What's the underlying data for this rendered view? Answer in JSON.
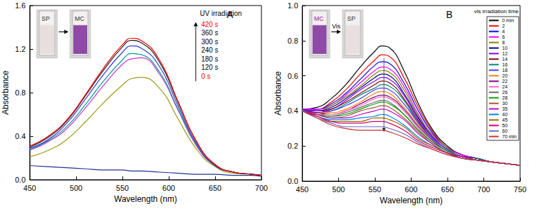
{
  "chart_data": [
    {
      "type": "line",
      "panel_label": "A",
      "x_label": "Wavelength (nm)",
      "y_label": "Absorbance",
      "xlim": [
        450,
        700
      ],
      "xticks": [
        450,
        500,
        550,
        600,
        650,
        700
      ],
      "ylim": [
        0,
        1.6
      ],
      "yticks": [
        {
          "value": 0,
          "label": "0.0"
        },
        0.4,
        0.8,
        1.2,
        1.6
      ],
      "grid": false,
      "insets": [
        "SP",
        "MC"
      ],
      "annotation_title": "UV irradiation",
      "x": [
        450,
        470,
        490,
        510,
        530,
        550,
        560,
        570,
        590,
        610,
        630,
        650,
        670,
        690,
        700
      ],
      "series": [
        {
          "name": "0 s",
          "color": "#1f2f8f",
          "values": [
            0.13,
            0.12,
            0.11,
            0.1,
            0.09,
            0.09,
            0.08,
            0.08,
            0.07,
            0.06,
            0.05,
            0.05,
            0.04,
            0.04,
            0.03
          ]
        },
        {
          "name": "120 s",
          "color": "#9a9a10",
          "values": [
            0.21,
            0.27,
            0.37,
            0.53,
            0.71,
            0.87,
            0.93,
            0.94,
            0.84,
            0.56,
            0.28,
            0.12,
            0.06,
            0.05,
            0.04
          ]
        },
        {
          "name": "180 s",
          "color": "#cc33cc",
          "values": [
            0.27,
            0.35,
            0.47,
            0.66,
            0.87,
            1.06,
            1.11,
            1.12,
            0.97,
            0.64,
            0.31,
            0.13,
            0.07,
            0.05,
            0.04
          ]
        },
        {
          "name": "240 s",
          "color": "#009999",
          "values": [
            0.28,
            0.36,
            0.49,
            0.69,
            0.91,
            1.1,
            1.16,
            1.15,
            0.99,
            0.65,
            0.32,
            0.13,
            0.07,
            0.05,
            0.04
          ]
        },
        {
          "name": "300 s",
          "color": "#3333cc",
          "values": [
            0.29,
            0.37,
            0.52,
            0.74,
            0.97,
            1.17,
            1.23,
            1.21,
            1.04,
            0.68,
            0.33,
            0.13,
            0.07,
            0.05,
            0.04
          ]
        },
        {
          "name": "360 s",
          "color": "#1a1a1a",
          "values": [
            0.3,
            0.39,
            0.54,
            0.77,
            1.01,
            1.22,
            1.28,
            1.26,
            1.08,
            0.71,
            0.35,
            0.14,
            0.07,
            0.05,
            0.04
          ]
        },
        {
          "name": "420 s",
          "color": "#ff0000",
          "values": [
            0.31,
            0.4,
            0.55,
            0.78,
            1.03,
            1.24,
            1.3,
            1.28,
            1.1,
            0.72,
            0.35,
            0.14,
            0.07,
            0.05,
            0.04
          ]
        }
      ]
    },
    {
      "type": "line",
      "panel_label": "B",
      "x_label": "Wavelength (nm)",
      "y_label": "Absorbance",
      "xlim": [
        450,
        750
      ],
      "xticks": [
        450,
        500,
        550,
        600,
        650,
        700,
        750
      ],
      "ylim": [
        0,
        1.0
      ],
      "yticks": [
        {
          "value": 0,
          "label": "0.0"
        },
        0.2,
        0.4,
        0.6,
        0.8,
        {
          "value": 1.0,
          "label": "1.0"
        }
      ],
      "grid": false,
      "legend": "upper right",
      "legend_title": "vis irradiation time",
      "insets": [
        "MC",
        "SP"
      ],
      "inset_arrow_label": "Vis",
      "x": [
        450,
        470,
        490,
        510,
        530,
        550,
        560,
        570,
        590,
        610,
        630,
        650,
        670,
        690,
        710,
        730,
        750
      ],
      "series": [
        {
          "name": "0 min",
          "color": "#000000",
          "values": [
            0.41,
            0.42,
            0.47,
            0.55,
            0.65,
            0.74,
            0.77,
            0.76,
            0.63,
            0.44,
            0.29,
            0.2,
            0.15,
            0.13,
            0.11,
            0.1,
            0.09
          ]
        },
        {
          "name": "2",
          "color": "#ff0000",
          "values": [
            0.41,
            0.41,
            0.45,
            0.52,
            0.61,
            0.69,
            0.72,
            0.71,
            0.59,
            0.42,
            0.28,
            0.19,
            0.15,
            0.13,
            0.11,
            0.1,
            0.09
          ]
        },
        {
          "name": "4",
          "color": "#0000ff",
          "values": [
            0.41,
            0.41,
            0.44,
            0.5,
            0.58,
            0.66,
            0.68,
            0.67,
            0.56,
            0.4,
            0.27,
            0.19,
            0.15,
            0.13,
            0.11,
            0.1,
            0.09
          ]
        },
        {
          "name": "6",
          "color": "#ff00ff",
          "values": [
            0.41,
            0.41,
            0.43,
            0.49,
            0.56,
            0.63,
            0.65,
            0.64,
            0.54,
            0.38,
            0.26,
            0.19,
            0.15,
            0.13,
            0.11,
            0.1,
            0.09
          ]
        },
        {
          "name": "8",
          "color": "#808000",
          "values": [
            0.41,
            0.4,
            0.43,
            0.48,
            0.54,
            0.61,
            0.63,
            0.62,
            0.52,
            0.37,
            0.26,
            0.19,
            0.14,
            0.13,
            0.11,
            0.1,
            0.09
          ]
        },
        {
          "name": "10",
          "color": "#000080",
          "values": [
            0.41,
            0.4,
            0.42,
            0.47,
            0.53,
            0.59,
            0.61,
            0.6,
            0.5,
            0.36,
            0.25,
            0.18,
            0.14,
            0.13,
            0.11,
            0.1,
            0.09
          ]
        },
        {
          "name": "12",
          "color": "#8000ff",
          "values": [
            0.41,
            0.4,
            0.41,
            0.46,
            0.52,
            0.57,
            0.59,
            0.58,
            0.49,
            0.35,
            0.25,
            0.18,
            0.14,
            0.13,
            0.11,
            0.1,
            0.09
          ]
        },
        {
          "name": "14",
          "color": "#800000",
          "values": [
            0.41,
            0.39,
            0.41,
            0.45,
            0.5,
            0.55,
            0.57,
            0.56,
            0.47,
            0.34,
            0.24,
            0.18,
            0.14,
            0.13,
            0.11,
            0.1,
            0.09
          ]
        },
        {
          "name": "16",
          "color": "#008080",
          "values": [
            0.41,
            0.39,
            0.4,
            0.44,
            0.49,
            0.53,
            0.55,
            0.54,
            0.46,
            0.33,
            0.24,
            0.18,
            0.14,
            0.13,
            0.11,
            0.1,
            0.09
          ]
        },
        {
          "name": "18",
          "color": "#4040ff",
          "values": [
            0.41,
            0.39,
            0.4,
            0.43,
            0.47,
            0.52,
            0.53,
            0.52,
            0.44,
            0.33,
            0.24,
            0.18,
            0.14,
            0.12,
            0.11,
            0.1,
            0.09
          ]
        },
        {
          "name": "20",
          "color": "#ff8000",
          "values": [
            0.4,
            0.39,
            0.39,
            0.41,
            0.45,
            0.5,
            0.51,
            0.5,
            0.42,
            0.32,
            0.23,
            0.17,
            0.14,
            0.12,
            0.11,
            0.1,
            0.09
          ]
        },
        {
          "name": "22",
          "color": "#800080",
          "values": [
            0.4,
            0.39,
            0.38,
            0.4,
            0.44,
            0.48,
            0.49,
            0.48,
            0.41,
            0.31,
            0.23,
            0.17,
            0.14,
            0.12,
            0.11,
            0.1,
            0.09
          ]
        },
        {
          "name": "24",
          "color": "#ff66cc",
          "values": [
            0.4,
            0.38,
            0.38,
            0.4,
            0.43,
            0.47,
            0.48,
            0.47,
            0.4,
            0.3,
            0.22,
            0.17,
            0.14,
            0.12,
            0.11,
            0.1,
            0.09
          ]
        },
        {
          "name": "26",
          "color": "#666666",
          "values": [
            0.4,
            0.38,
            0.37,
            0.39,
            0.42,
            0.45,
            0.46,
            0.45,
            0.38,
            0.29,
            0.22,
            0.17,
            0.14,
            0.12,
            0.11,
            0.1,
            0.09
          ]
        },
        {
          "name": "28",
          "color": "#00a000",
          "values": [
            0.4,
            0.38,
            0.37,
            0.38,
            0.41,
            0.44,
            0.45,
            0.44,
            0.38,
            0.29,
            0.22,
            0.17,
            0.14,
            0.12,
            0.11,
            0.1,
            0.09
          ]
        },
        {
          "name": "30",
          "color": "#a0522d",
          "values": [
            0.4,
            0.38,
            0.36,
            0.37,
            0.4,
            0.42,
            0.43,
            0.42,
            0.36,
            0.28,
            0.21,
            0.16,
            0.14,
            0.12,
            0.11,
            0.1,
            0.09
          ]
        },
        {
          "name": "35",
          "color": "#c000c0",
          "values": [
            0.4,
            0.38,
            0.36,
            0.36,
            0.38,
            0.4,
            0.41,
            0.4,
            0.35,
            0.27,
            0.21,
            0.16,
            0.14,
            0.12,
            0.11,
            0.1,
            0.09
          ]
        },
        {
          "name": "40",
          "color": "#0080ff",
          "values": [
            0.4,
            0.37,
            0.35,
            0.35,
            0.36,
            0.37,
            0.38,
            0.37,
            0.32,
            0.25,
            0.2,
            0.16,
            0.13,
            0.12,
            0.11,
            0.1,
            0.09
          ]
        },
        {
          "name": "45",
          "color": "#996600",
          "values": [
            0.4,
            0.37,
            0.34,
            0.34,
            0.34,
            0.36,
            0.36,
            0.35,
            0.31,
            0.24,
            0.2,
            0.16,
            0.13,
            0.12,
            0.11,
            0.1,
            0.09
          ]
        },
        {
          "name": "50",
          "color": "#cc0066",
          "values": [
            0.4,
            0.37,
            0.34,
            0.33,
            0.33,
            0.34,
            0.34,
            0.33,
            0.29,
            0.23,
            0.19,
            0.16,
            0.13,
            0.12,
            0.11,
            0.1,
            0.09
          ]
        },
        {
          "name": "60",
          "color": "#6666cc",
          "values": [
            0.4,
            0.36,
            0.33,
            0.31,
            0.31,
            0.31,
            0.31,
            0.3,
            0.27,
            0.22,
            0.18,
            0.15,
            0.13,
            0.12,
            0.11,
            0.1,
            0.09
          ]
        },
        {
          "name": "70 min",
          "color": "#cc3333",
          "values": [
            0.4,
            0.36,
            0.32,
            0.3,
            0.29,
            0.29,
            0.29,
            0.28,
            0.25,
            0.21,
            0.18,
            0.15,
            0.13,
            0.12,
            0.11,
            0.1,
            0.09
          ]
        }
      ]
    }
  ]
}
